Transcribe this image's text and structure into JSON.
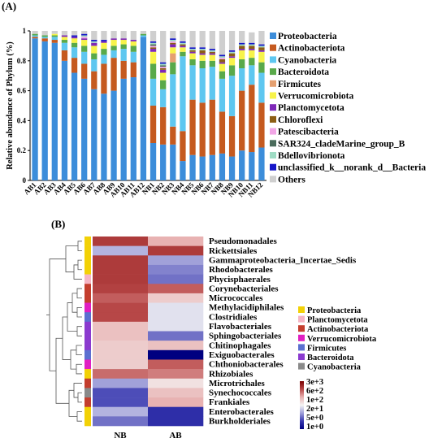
{
  "chart_data": [
    {
      "panel": "(A)",
      "type": "bar",
      "stacked": true,
      "ylabel": "Relative abundance of Phylum (%)",
      "ylim": [
        0,
        1
      ],
      "yticks": [
        "0",
        "0.2",
        "0.4",
        "0.6",
        "0.8",
        "1"
      ],
      "categories": [
        "AB1",
        "AB2",
        "AB3",
        "AB4",
        "AB5",
        "AB6",
        "AB7",
        "AB8",
        "AB9",
        "AB10",
        "AB11",
        "AB12",
        "NB1",
        "NB2",
        "NB3",
        "NB4",
        "NB5",
        "NB6",
        "NB7",
        "NB8",
        "NB9",
        "NB10",
        "NB11",
        "NB12"
      ],
      "legend_position": "right",
      "series": [
        {
          "name": "Proteobacteria",
          "color": "#3C8DDA",
          "values": [
            0.95,
            0.93,
            0.92,
            0.8,
            0.72,
            0.68,
            0.61,
            0.58,
            0.6,
            0.68,
            0.69,
            0.96,
            0.25,
            0.24,
            0.24,
            0.13,
            0.17,
            0.16,
            0.17,
            0.18,
            0.16,
            0.2,
            0.19,
            0.22
          ]
        },
        {
          "name": "Actinobacteriota",
          "color": "#C55A1F",
          "values": [
            0.01,
            0.02,
            0.02,
            0.07,
            0.1,
            0.1,
            0.12,
            0.2,
            0.22,
            0.12,
            0.1,
            0.0,
            0.25,
            0.25,
            0.12,
            0.2,
            0.37,
            0.36,
            0.37,
            0.28,
            0.27,
            0.4,
            0.45,
            0.3
          ]
        },
        {
          "name": "Cyanobacteria",
          "color": "#5EC7F0",
          "values": [
            0.01,
            0.01,
            0.02,
            0.05,
            0.07,
            0.08,
            0.08,
            0.06,
            0.05,
            0.08,
            0.07,
            0.01,
            0.18,
            0.12,
            0.35,
            0.5,
            0.23,
            0.23,
            0.22,
            0.22,
            0.27,
            0.15,
            0.13,
            0.2
          ]
        },
        {
          "name": "Bacteroidota",
          "color": "#59A94A",
          "values": [
            0.01,
            0.01,
            0.01,
            0.02,
            0.03,
            0.04,
            0.04,
            0.04,
            0.03,
            0.03,
            0.04,
            0.01,
            0.1,
            0.06,
            0.08,
            0.03,
            0.04,
            0.05,
            0.04,
            0.05,
            0.07,
            0.06,
            0.05,
            0.07
          ]
        },
        {
          "name": "Firmicutes",
          "color": "#E5A070",
          "values": [
            0.0,
            0.0,
            0.0,
            0.0,
            0.0,
            0.0,
            0.0,
            0.0,
            0.0,
            0.0,
            0.0,
            0.0,
            0.0,
            0.0,
            0.06,
            0.0,
            0.0,
            0.0,
            0.0,
            0.0,
            0.0,
            0.0,
            0.0,
            0.0
          ]
        },
        {
          "name": "Verrucomicrobiota",
          "color": "#F7F34A",
          "values": [
            0.0,
            0.0,
            0.01,
            0.02,
            0.03,
            0.04,
            0.05,
            0.04,
            0.04,
            0.03,
            0.03,
            0.0,
            0.08,
            0.05,
            0.04,
            0.03,
            0.04,
            0.04,
            0.04,
            0.05,
            0.05,
            0.06,
            0.05,
            0.07
          ]
        },
        {
          "name": "Planctomycetota",
          "color": "#7E28B8",
          "values": [
            0.0,
            0.0,
            0.0,
            0.01,
            0.01,
            0.01,
            0.02,
            0.01,
            0.01,
            0.01,
            0.01,
            0.0,
            0.02,
            0.02,
            0.02,
            0.01,
            0.01,
            0.01,
            0.01,
            0.01,
            0.01,
            0.01,
            0.01,
            0.01
          ]
        },
        {
          "name": "Chloroflexi",
          "color": "#8C5E14",
          "values": [
            0.0,
            0.0,
            0.0,
            0.0,
            0.0,
            0.0,
            0.0,
            0.0,
            0.0,
            0.0,
            0.0,
            0.0,
            0.01,
            0.01,
            0.01,
            0.01,
            0.01,
            0.02,
            0.01,
            0.02,
            0.02,
            0.02,
            0.02,
            0.02
          ]
        },
        {
          "name": "Patescibacteria",
          "color": "#F2A6E6",
          "values": [
            0.0,
            0.0,
            0.0,
            0.0,
            0.0,
            0.01,
            0.0,
            0.0,
            0.0,
            0.0,
            0.0,
            0.0,
            0.01,
            0.01,
            0.01,
            0.0,
            0.0,
            0.0,
            0.0,
            0.01,
            0.0,
            0.0,
            0.0,
            0.0
          ]
        },
        {
          "name": "SAR324_cladeMarine_group_B",
          "color": "#4A6B5B",
          "values": [
            0.0,
            0.0,
            0.0,
            0.0,
            0.0,
            0.0,
            0.0,
            0.0,
            0.0,
            0.0,
            0.0,
            0.0,
            0.01,
            0.01,
            0.0,
            0.0,
            0.0,
            0.0,
            0.0,
            0.0,
            0.0,
            0.0,
            0.0,
            0.0
          ]
        },
        {
          "name": "Bdellovibrionota",
          "color": "#9FDCC4",
          "values": [
            0.0,
            0.0,
            0.0,
            0.0,
            0.0,
            0.01,
            0.01,
            0.0,
            0.0,
            0.0,
            0.0,
            0.0,
            0.01,
            0.01,
            0.01,
            0.01,
            0.01,
            0.01,
            0.01,
            0.01,
            0.01,
            0.01,
            0.01,
            0.01
          ]
        },
        {
          "name": "unclassified_k__norank_d__Bacteria",
          "color": "#1515C8",
          "values": [
            0.0,
            0.0,
            0.0,
            0.0,
            0.01,
            0.01,
            0.01,
            0.01,
            0.0,
            0.0,
            0.0,
            0.0,
            0.01,
            0.01,
            0.01,
            0.01,
            0.01,
            0.01,
            0.01,
            0.01,
            0.01,
            0.01,
            0.01,
            0.01
          ]
        },
        {
          "name": "Others",
          "color": "#CFCFCF",
          "values": [
            0.02,
            0.03,
            0.02,
            0.03,
            0.03,
            0.02,
            0.06,
            0.06,
            0.05,
            0.05,
            0.06,
            0.02,
            0.07,
            0.21,
            0.05,
            0.07,
            0.11,
            0.11,
            0.12,
            0.16,
            0.13,
            0.08,
            0.07,
            0.09
          ]
        }
      ]
    },
    {
      "panel": "(B)",
      "type": "heatmap",
      "columns": [
        "NB",
        "AB"
      ],
      "rows": [
        {
          "name": "Pseudomonadales",
          "phylum": "Proteobacteria",
          "values": [
            1000,
            200
          ]
        },
        {
          "name": "Rickettsiales",
          "phylum": "Proteobacteria",
          "values": [
            20,
            1000
          ]
        },
        {
          "name": "Gammaproteobacteria_Incertae_Sedis",
          "phylum": "Proteobacteria",
          "values": [
            1000,
            15
          ]
        },
        {
          "name": "Rhodobacterales",
          "phylum": "Proteobacteria",
          "values": [
            1000,
            10
          ]
        },
        {
          "name": "Phycisphaerales",
          "phylum": "Planctomycetota",
          "values": [
            1000,
            8
          ]
        },
        {
          "name": "Corynebacteriales",
          "phylum": "Actinobacteriota",
          "values": [
            900,
            600
          ]
        },
        {
          "name": "Micrococcales",
          "phylum": "Actinobacteriota",
          "values": [
            600,
            120
          ]
        },
        {
          "name": "Methylacidiphilales",
          "phylum": "Verrucomicrobiota",
          "values": [
            800,
            40
          ]
        },
        {
          "name": "Clostridiales",
          "phylum": "Firmicutes",
          "values": [
            800,
            40
          ]
        },
        {
          "name": "Flavobacteriales",
          "phylum": "Bacteroidota",
          "values": [
            150,
            40
          ]
        },
        {
          "name": "Sphingobacteriales",
          "phylum": "Bacteroidota",
          "values": [
            150,
            8
          ]
        },
        {
          "name": "Chitinophagales",
          "phylum": "Bacteroidota",
          "values": [
            120,
            150
          ]
        },
        {
          "name": "Exiguobacterales",
          "phylum": "Firmicutes",
          "values": [
            120,
            1
          ]
        },
        {
          "name": "Chthoniobacterales",
          "phylum": "Verrucomicrobiota",
          "values": [
            120,
            600
          ]
        },
        {
          "name": "Rhizobiales",
          "phylum": "Proteobacteria",
          "values": [
            500,
            400
          ]
        },
        {
          "name": "Microtrichales",
          "phylum": "Actinobacteriota",
          "values": [
            15,
            80
          ]
        },
        {
          "name": "Synechococcales",
          "phylum": "Cyanobacteria",
          "values": [
            5,
            150
          ]
        },
        {
          "name": "Frankiales",
          "phylum": "Actinobacteriota",
          "values": [
            5,
            200
          ]
        },
        {
          "name": "Enterobacterales",
          "phylum": "Proteobacteria",
          "values": [
            20,
            3
          ]
        },
        {
          "name": "Burkholderiales",
          "phylum": "Proteobacteria",
          "values": [
            8,
            3
          ]
        }
      ],
      "legend": [
        {
          "name": "Proteobacteria",
          "color": "#F2D106"
        },
        {
          "name": "Planctomycetota",
          "color": "#F5B5C5"
        },
        {
          "name": "Actinobacteriota",
          "color": "#C43E2E"
        },
        {
          "name": "Verrucomicrobiota",
          "color": "#E01FC2"
        },
        {
          "name": "Firmicutes",
          "color": "#5B6FD0"
        },
        {
          "name": "Bacteroidota",
          "color": "#8B3ACF"
        },
        {
          "name": "Cyanobacteria",
          "color": "#8A8A8A"
        }
      ],
      "colorbar": {
        "labels": [
          "3e+3",
          "6e+2",
          "1e+2",
          "2e+1",
          "5e+0",
          "1e+0"
        ],
        "scale": "log",
        "range": [
          1,
          3000
        ],
        "colors": [
          "#000080",
          "#3838B0",
          "#9E9ED8",
          "#F5F5F5",
          "#E8B0B0",
          "#B84848",
          "#7A0000"
        ]
      }
    }
  ]
}
